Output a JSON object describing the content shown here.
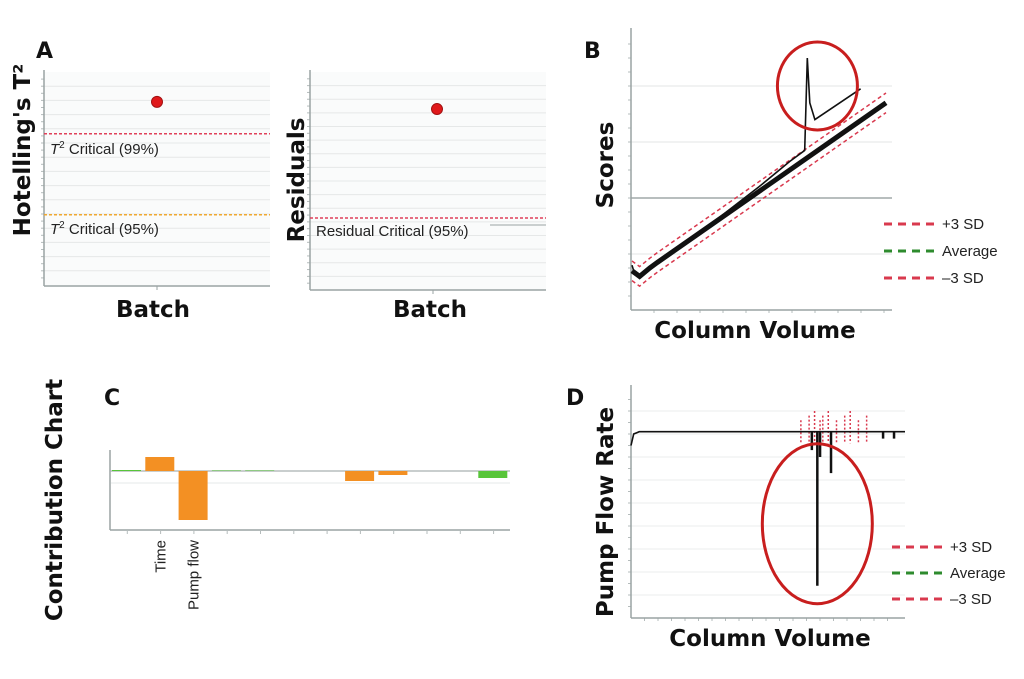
{
  "panels": {
    "a": "A",
    "b": "B",
    "c": "C",
    "d": "D"
  },
  "colors": {
    "point": "#e0191b",
    "limit99": "#e0405a",
    "limit95": "#f0a830",
    "sd": "#d9394e",
    "average": "#2e8b2e",
    "trace": "#111111",
    "highlight": "#c81e1e",
    "bar_orange": "#f39023",
    "bar_green": "#58c53a"
  },
  "chart_data": [
    {
      "id": "hotelling",
      "type": "scatter",
      "xlabel": "Batch",
      "ylabel": "Hotelling's T²",
      "ylim": [
        0,
        10
      ],
      "grid": true,
      "points": [
        {
          "x": 1,
          "y": 8.6
        }
      ],
      "limits": [
        {
          "label_sym": "T",
          "label_sup": "2",
          "label_text": " Critical (99%)",
          "value": 7.1,
          "color": "#e0405a"
        },
        {
          "label_sym": "T",
          "label_sup": "2",
          "label_text": " Critical (95%)",
          "value": 3.3,
          "color": "#f0a830"
        }
      ]
    },
    {
      "id": "residuals",
      "type": "scatter",
      "xlabel": "Batch",
      "ylabel": "Residuals",
      "ylim": [
        0,
        10
      ],
      "grid": true,
      "points": [
        {
          "x": 1,
          "y": 8.3
        }
      ],
      "limits": [
        {
          "label": "Residual Critical (95%)",
          "value": 3.3,
          "color": "#e0405a"
        }
      ]
    },
    {
      "id": "scores",
      "type": "line",
      "xlabel": "Column Volume",
      "ylabel": "Scores",
      "xlim": [
        0,
        100
      ],
      "ylim": [
        0,
        10
      ],
      "grid": true,
      "legend_position": "right",
      "legend": [
        "+3 SD",
        "Average",
        "–3 SD"
      ],
      "observed": [
        [
          0,
          1.6
        ],
        [
          1,
          1.3
        ],
        [
          3,
          1.2
        ],
        [
          7,
          1.5
        ],
        [
          10,
          1.7
        ],
        [
          30,
          3.0
        ],
        [
          50,
          4.4
        ],
        [
          62,
          5.3
        ],
        [
          68,
          5.7
        ],
        [
          69,
          9.0
        ],
        [
          70,
          7.4
        ],
        [
          72,
          6.8
        ],
        [
          90,
          7.9
        ]
      ],
      "average": [
        [
          0,
          1.4
        ],
        [
          3,
          1.2
        ],
        [
          7,
          1.5
        ],
        [
          10,
          1.7
        ],
        [
          100,
          7.4
        ]
      ],
      "sd_offset": 0.35,
      "highlight": {
        "x": 73,
        "y": 8.0
      }
    },
    {
      "id": "contribution",
      "type": "bar",
      "ylabel": "Contribution Chart",
      "categories": [
        "",
        "Time",
        "Pump flow",
        "",
        "",
        "",
        "",
        "",
        "",
        "",
        "",
        ""
      ],
      "values": [
        0.1,
        1.4,
        -4.9,
        0.0,
        0.05,
        0,
        0,
        -1.0,
        -0.4,
        0,
        0,
        -0.7
      ],
      "bar_colors": [
        "green",
        "orange",
        "orange",
        "green",
        "green",
        "",
        "",
        "orange",
        "orange",
        "",
        "",
        "green"
      ]
    },
    {
      "id": "pump_flow",
      "type": "line",
      "xlabel": "Column Volume",
      "ylabel": "Pump Flow Rate",
      "xlim": [
        0,
        100
      ],
      "ylim": [
        0,
        10
      ],
      "grid": true,
      "legend_position": "right",
      "legend": [
        "+3 SD",
        "Average",
        "–3 SD"
      ],
      "baseline": 8.1,
      "start": [
        [
          0,
          7.5
        ],
        [
          1,
          8.0
        ],
        [
          3,
          8.1
        ],
        [
          100,
          8.1
        ]
      ],
      "dips": [
        {
          "x": 66,
          "y": 7.3
        },
        {
          "x": 68,
          "y": 1.4
        },
        {
          "x": 69,
          "y": 7.0
        },
        {
          "x": 73,
          "y": 6.3
        },
        {
          "x": 92,
          "y": 7.8
        },
        {
          "x": 96,
          "y": 7.8
        }
      ],
      "highlight": {
        "x": 68,
        "y": 4.1
      }
    }
  ]
}
